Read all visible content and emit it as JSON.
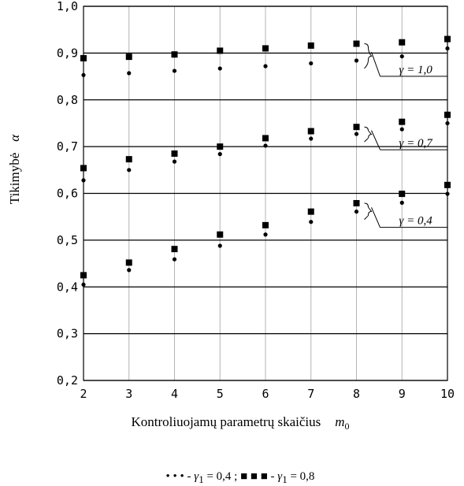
{
  "chart_data": {
    "type": "scatter",
    "xlabel": "Kontroliuojamų parametrų skaičius",
    "xlabel_symbol": "m",
    "xlabel_symbol_sub": "0",
    "ylabel": "Tikimybė",
    "ylabel_symbol": "α",
    "xlim": [
      2,
      10
    ],
    "ylim": [
      0.2,
      1.0
    ],
    "x_ticks": [
      2,
      3,
      4,
      5,
      6,
      7,
      8,
      9,
      10
    ],
    "x_tick_labels": [
      "2",
      "3",
      "4",
      "5",
      "6",
      "7",
      "8",
      "9",
      "10"
    ],
    "y_ticks": [
      0.2,
      0.3,
      0.4,
      0.5,
      0.6,
      0.7,
      0.8,
      0.9,
      1.0
    ],
    "y_tick_labels": [
      "0,2",
      "0,3",
      "0,4",
      "0,5",
      "0,6",
      "0,7",
      "0,8",
      "0,9",
      "1,0"
    ],
    "grid": "vertical gray at each x tick; horizontal black at each y tick",
    "series": [
      {
        "name": "γ1 = 0,4",
        "marker": "dot",
        "groups": [
          {
            "gamma": "γ = 1,0",
            "x": [
              2,
              3,
              4,
              5,
              6,
              7,
              8,
              9,
              10
            ],
            "y": [
              0.853,
              0.857,
              0.862,
              0.867,
              0.872,
              0.878,
              0.884,
              0.893,
              0.91
            ]
          },
          {
            "gamma": "γ = 0,7",
            "x": [
              2,
              3,
              4,
              5,
              6,
              7,
              8,
              9,
              10
            ],
            "y": [
              0.628,
              0.65,
              0.668,
              0.684,
              0.702,
              0.717,
              0.727,
              0.737,
              0.75
            ]
          },
          {
            "gamma": "γ = 0,4",
            "x": [
              2,
              3,
              4,
              5,
              6,
              7,
              8,
              9,
              10
            ],
            "y": [
              0.405,
              0.436,
              0.459,
              0.488,
              0.512,
              0.539,
              0.561,
              0.58,
              0.599
            ]
          }
        ]
      },
      {
        "name": "γ1 = 0,8",
        "marker": "square",
        "groups": [
          {
            "gamma": "γ = 1,0",
            "x": [
              2,
              3,
              4,
              5,
              6,
              7,
              8,
              9,
              10
            ],
            "y": [
              0.889,
              0.892,
              0.897,
              0.905,
              0.91,
              0.916,
              0.92,
              0.923,
              0.93
            ]
          },
          {
            "gamma": "γ = 0,7",
            "x": [
              2,
              3,
              4,
              5,
              6,
              7,
              8,
              9,
              10
            ],
            "y": [
              0.654,
              0.673,
              0.685,
              0.7,
              0.718,
              0.733,
              0.742,
              0.753,
              0.768
            ]
          },
          {
            "gamma": "γ = 0,4",
            "x": [
              2,
              3,
              4,
              5,
              6,
              7,
              8,
              9,
              10
            ],
            "y": [
              0.425,
              0.452,
              0.481,
              0.512,
              0.532,
              0.561,
              0.579,
              0.599,
              0.618
            ]
          }
        ]
      }
    ],
    "annotations": [
      "γ = 1,0",
      "γ = 0,7",
      "γ = 0,4"
    ],
    "legend": {
      "placement": "bottom-center",
      "items": [
        {
          "symbol": "• • •",
          "dash": "-",
          "label": "γ",
          "sub": "1",
          "value": " = 0,4",
          "sep": " ;"
        },
        {
          "symbol": "■ ■ ■",
          "dash": "-",
          "label": "γ",
          "sub": "1",
          "value": " = 0,8",
          "sep": ""
        }
      ]
    }
  }
}
